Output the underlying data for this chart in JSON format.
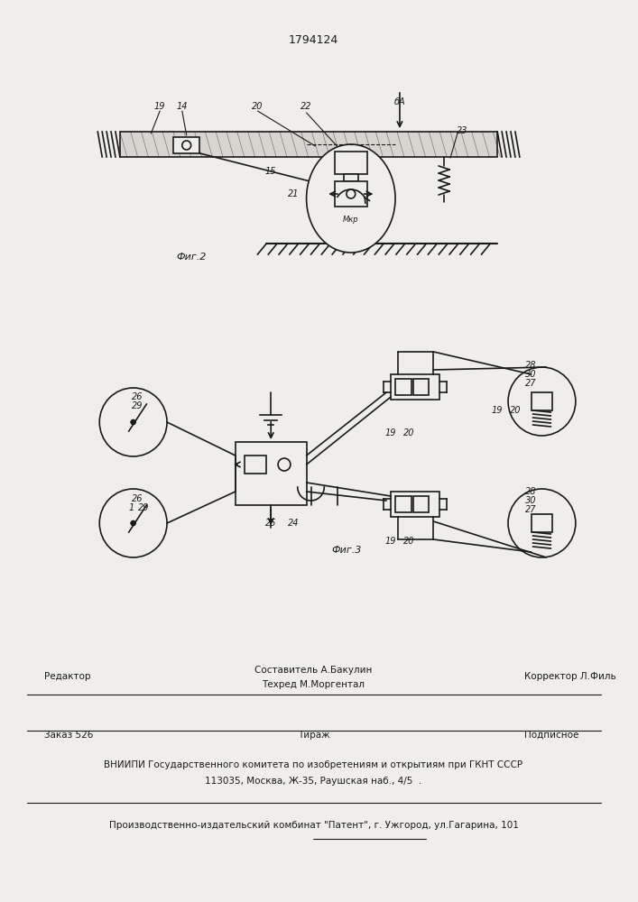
{
  "patent_number": "1794124",
  "fig2_label": "Фиг.2",
  "fig3_label": "Фиг.3",
  "bg_color": "#f0eeea",
  "line_color": "#1a1a1a",
  "footer_line1_left": "Редактор",
  "footer_line1_center": "Составитель А.Бакулин\nТехред М.Моргентал",
  "footer_line1_right": "Корректор Л.Филь",
  "footer_line2_left": "Заказ 526",
  "footer_line2_center": "Тираж",
  "footer_line2_right": "Подписное",
  "footer_line3": "ВНИИПИ Государственного комитета по изобретениям и открытиям при ГКНТ СССР",
  "footer_line4": "113035, Москва, Ж-35, Раушская наб., 4/5  .",
  "footer_line5": "Производственно-издательский комбинат \"Патент\", г. Ужгород, ул.Гагарина, 101"
}
